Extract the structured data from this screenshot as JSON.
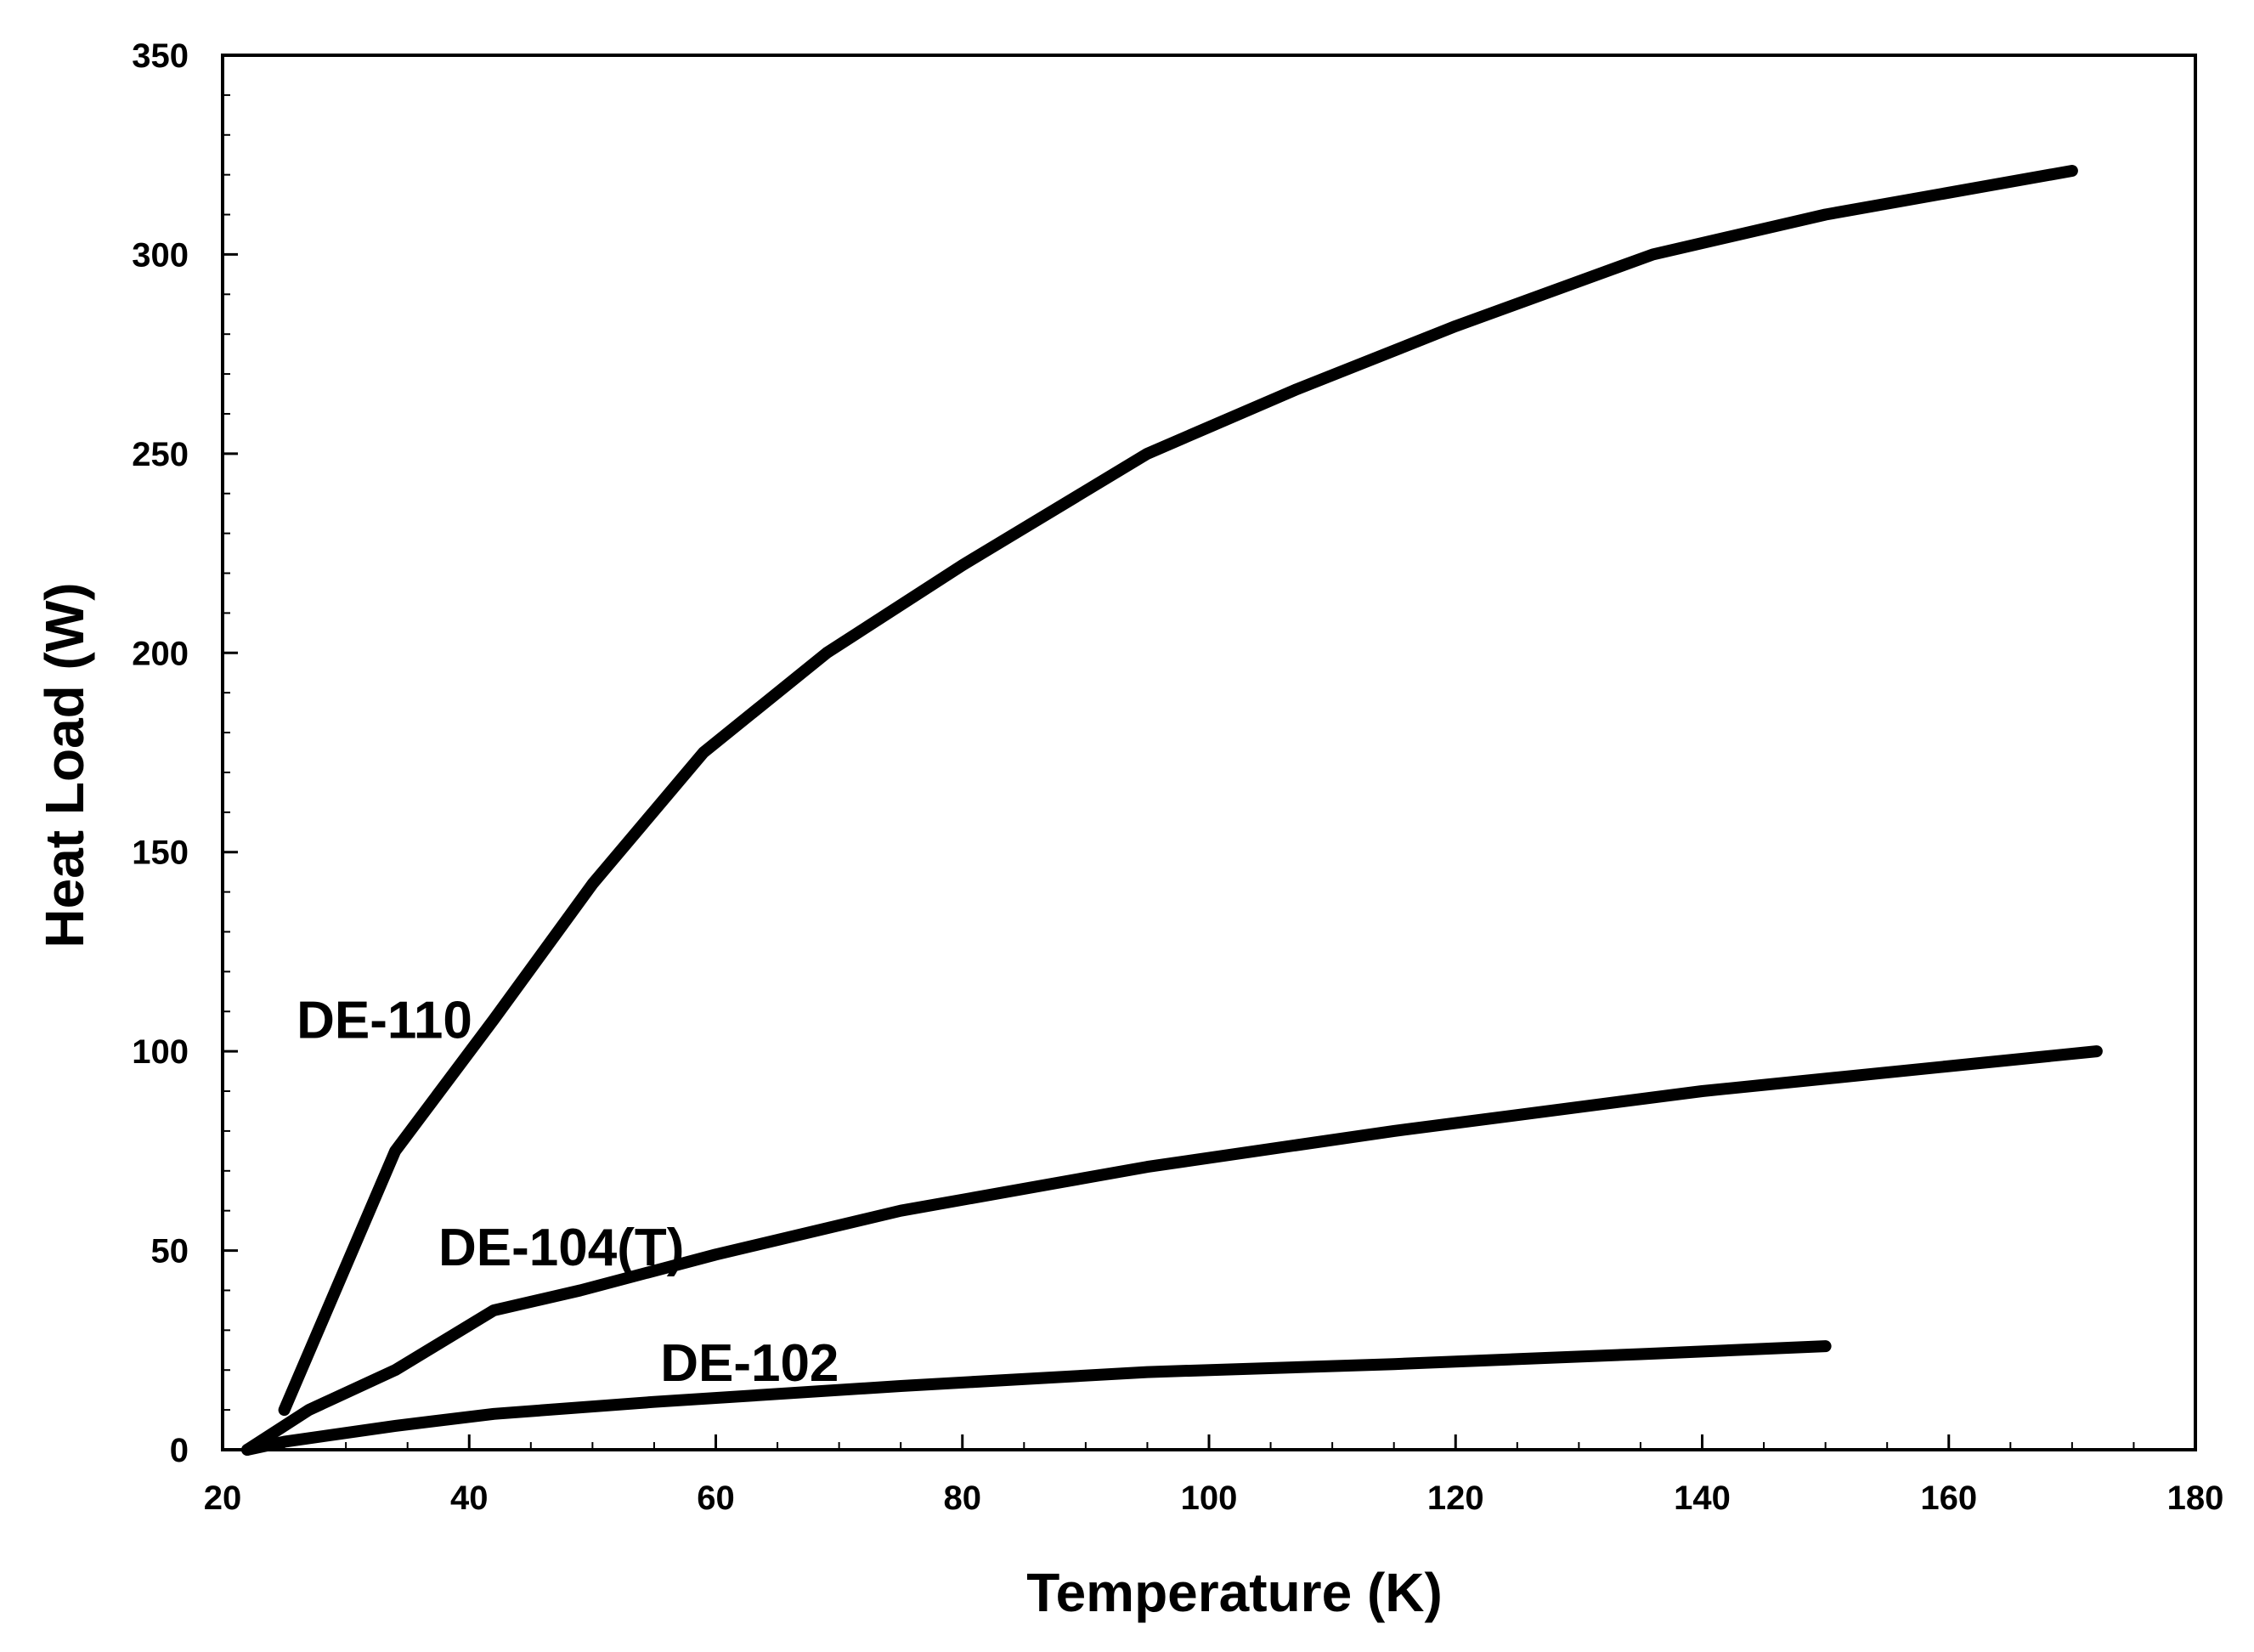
{
  "chart_data": {
    "type": "line",
    "title": "",
    "xlabel": "Temperature (K)",
    "ylabel": "Heat Load (W)",
    "xlim": [
      20,
      180
    ],
    "ylim": [
      0,
      350
    ],
    "xticks": [
      20,
      40,
      60,
      80,
      100,
      120,
      140,
      160,
      180
    ],
    "yticks": [
      0,
      50,
      100,
      150,
      200,
      250,
      300,
      350
    ],
    "x_minor_step": 5,
    "y_minor_step": 10,
    "grid": false,
    "series": [
      {
        "name": "DE-110",
        "x": [
          25,
          34,
          42,
          50,
          59,
          69,
          80,
          95,
          107,
          120,
          136,
          150,
          170
        ],
        "y": [
          10,
          75,
          108,
          142,
          175,
          200,
          222,
          250,
          266,
          282,
          300,
          310,
          321
        ]
      },
      {
        "name": "DE-104(T)",
        "x": [
          22,
          27,
          34,
          42,
          49,
          60,
          75,
          95,
          115,
          140,
          172
        ],
        "y": [
          0,
          10,
          20,
          35,
          40,
          49,
          60,
          71,
          80,
          90,
          100
        ]
      },
      {
        "name": "DE-102",
        "x": [
          22,
          25,
          34,
          42,
          55,
          75,
          95,
          115,
          135,
          150
        ],
        "y": [
          0,
          2,
          6,
          9,
          12,
          16,
          19.5,
          21.5,
          24,
          26
        ]
      }
    ],
    "annotations": [
      {
        "series": "DE-110",
        "text": "DE-110",
        "x": 26,
        "y": 108
      },
      {
        "series": "DE-104(T)",
        "text": "DE-104(T)",
        "x": 37.5,
        "y": 51
      },
      {
        "series": "DE-102",
        "text": "DE-102",
        "x": 55.5,
        "y": 22
      }
    ]
  }
}
